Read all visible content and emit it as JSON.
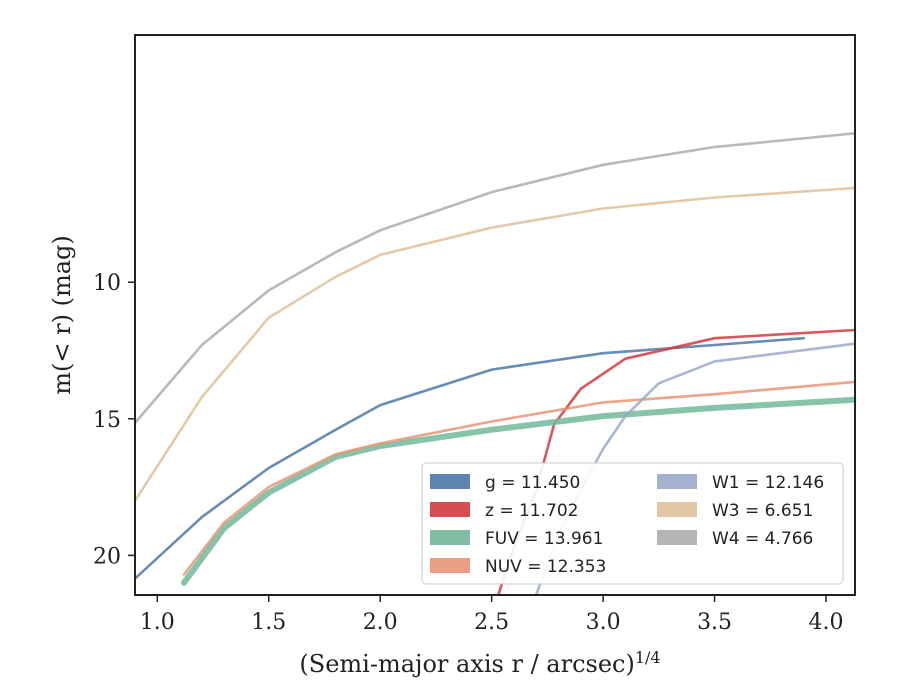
{
  "chart_data": {
    "type": "line",
    "xlabel": "(Semi-major axis r / arcsec)",
    "xlabel_sup": "1/4",
    "ylabel": "m(< r) (mag)",
    "xlim": [
      0.9,
      4.13
    ],
    "ylim": [
      21.45,
      0.95
    ],
    "y_inverted": true,
    "x_ticks": [
      1.0,
      1.5,
      2.0,
      2.5,
      3.0,
      3.5,
      4.0
    ],
    "x_tick_labels": [
      "1.0",
      "1.5",
      "2.0",
      "2.5",
      "3.0",
      "3.5",
      "4.0"
    ],
    "y_ticks": [
      10,
      15,
      20
    ],
    "y_tick_labels": [
      "10",
      "15",
      "20"
    ],
    "legend_position": "lower-right",
    "series": [
      {
        "name": "g = 11.450",
        "color": "#4c78a8",
        "values": [
          [
            0.9,
            20.85
          ],
          [
            1.2,
            18.6
          ],
          [
            1.5,
            16.8
          ],
          [
            1.8,
            15.4
          ],
          [
            2.0,
            14.5
          ],
          [
            2.5,
            13.2
          ],
          [
            3.0,
            12.6
          ],
          [
            3.5,
            12.3
          ],
          [
            3.9,
            12.05
          ]
        ]
      },
      {
        "name": "z = 11.702",
        "color": "#d13b40",
        "values": [
          [
            2.53,
            21.45
          ],
          [
            2.6,
            19.7
          ],
          [
            2.7,
            17.6
          ],
          [
            2.78,
            15.2
          ],
          [
            2.9,
            13.9
          ],
          [
            3.1,
            12.8
          ],
          [
            3.5,
            12.05
          ],
          [
            4.13,
            11.75
          ]
        ]
      },
      {
        "name": "FUV = 13.961",
        "color": "#72b89a",
        "values": [
          [
            1.12,
            21.0
          ],
          [
            1.3,
            19.0
          ],
          [
            1.5,
            17.7
          ],
          [
            1.8,
            16.4
          ],
          [
            2.0,
            16.0
          ],
          [
            2.5,
            15.4
          ],
          [
            3.0,
            14.9
          ],
          [
            3.5,
            14.6
          ],
          [
            4.13,
            14.3
          ]
        ]
      },
      {
        "name": "NUV = 12.353",
        "color": "#e89574",
        "values": [
          [
            1.12,
            20.7
          ],
          [
            1.3,
            18.8
          ],
          [
            1.5,
            17.5
          ],
          [
            1.8,
            16.3
          ],
          [
            2.0,
            15.9
          ],
          [
            2.5,
            15.1
          ],
          [
            3.0,
            14.4
          ],
          [
            3.5,
            14.1
          ],
          [
            4.13,
            13.65
          ]
        ]
      },
      {
        "name": "W1 = 12.146",
        "color": "#9aa9cc",
        "values": [
          [
            2.7,
            21.45
          ],
          [
            2.8,
            19.2
          ],
          [
            2.9,
            17.6
          ],
          [
            3.0,
            16.1
          ],
          [
            3.1,
            14.9
          ],
          [
            3.25,
            13.7
          ],
          [
            3.5,
            12.9
          ],
          [
            4.13,
            12.25
          ]
        ]
      },
      {
        "name": "W3 = 6.651",
        "color": "#dfc19a",
        "values": [
          [
            0.9,
            18.0
          ],
          [
            1.2,
            14.2
          ],
          [
            1.5,
            11.3
          ],
          [
            1.8,
            9.8
          ],
          [
            2.0,
            9.0
          ],
          [
            2.5,
            8.0
          ],
          [
            3.0,
            7.3
          ],
          [
            3.5,
            6.9
          ],
          [
            4.13,
            6.55
          ]
        ]
      },
      {
        "name": "W4 = 4.766",
        "color": "#adadad",
        "values": [
          [
            0.9,
            15.15
          ],
          [
            1.2,
            12.3
          ],
          [
            1.5,
            10.3
          ],
          [
            1.8,
            8.9
          ],
          [
            2.0,
            8.1
          ],
          [
            2.5,
            6.7
          ],
          [
            3.0,
            5.7
          ],
          [
            3.5,
            5.05
          ],
          [
            4.13,
            4.55
          ]
        ]
      }
    ]
  }
}
